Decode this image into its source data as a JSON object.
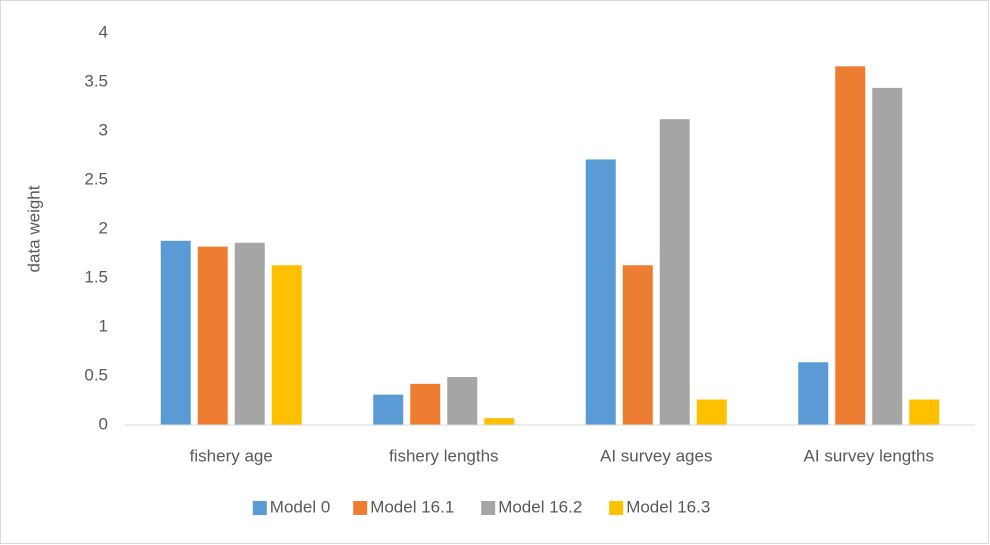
{
  "chart_data": {
    "type": "bar",
    "y_label": "data weight",
    "categories": [
      "fishery age",
      "fishery lengths",
      "AI survey ages",
      "AI survey lengths"
    ],
    "series": [
      {
        "name": "Model 0",
        "color": "#5b9bd5",
        "values": [
          1.88,
          0.31,
          2.71,
          0.64
        ]
      },
      {
        "name": "Model 16.1",
        "color": "#ed7d31",
        "values": [
          1.82,
          0.42,
          1.63,
          3.66
        ]
      },
      {
        "name": "Model 16.2",
        "color": "#a5a5a5",
        "values": [
          1.86,
          0.49,
          3.12,
          3.44
        ]
      },
      {
        "name": "Model 16.3",
        "color": "#ffc000",
        "values": [
          1.63,
          0.07,
          0.26,
          0.26
        ]
      }
    ],
    "ylim": [
      0,
      4
    ],
    "yticks": [
      0,
      0.5,
      1,
      1.5,
      2,
      2.5,
      3,
      3.5,
      4
    ],
    "grid": false,
    "legend": "bottom"
  }
}
